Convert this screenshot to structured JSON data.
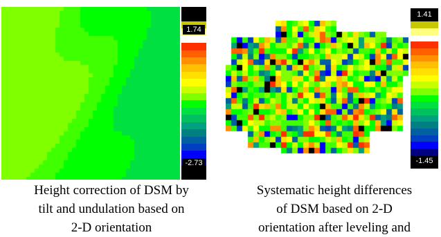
{
  "left_figure": {
    "colorbar": {
      "max_label": "1.74",
      "min_label": "-2.73"
    },
    "caption_lines": [
      "Height correction of DSM by",
      "tilt and undulation based on",
      "2-D orientation"
    ]
  },
  "right_figure": {
    "colorbar": {
      "max_label": "1.41",
      "min_label": "-1.45"
    },
    "caption_lines": [
      "Systematic height differences",
      "of DSM based on 2-D",
      "orientation after leveling and"
    ]
  },
  "colors": {
    "colorbar_scale_top_to_bottom": [
      "#000000",
      "#000000",
      "#c8c800",
      "#ffff80",
      "#ffffff",
      "#ff3000",
      "#ff6000",
      "#ff9000",
      "#ffc000",
      "#ffe000",
      "#ffff00",
      "#c8ff00",
      "#80ff00",
      "#00ff00",
      "#00e040",
      "#00c060",
      "#00a080",
      "#008080",
      "#0060a0",
      "#0040c0",
      "#0000ff",
      "#000080",
      "#000000",
      "#000000"
    ]
  }
}
